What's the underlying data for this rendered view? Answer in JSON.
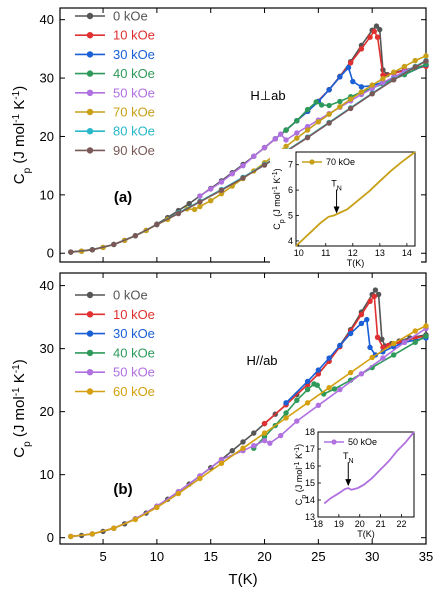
{
  "chart_data": [
    {
      "panel_label": "(b)",
      "type": "line",
      "annotation": "H//ab",
      "xlabel": "T(K)",
      "ylabel": "C_p (J mol^-1 K^-1)",
      "ylabel_parts": {
        "main": "C",
        "sub": "p",
        "u1": " (J mol",
        "e1": "-1",
        "u2": " K",
        "e2": "-1",
        "u3": ")"
      },
      "xlim": [
        1,
        35
      ],
      "ylim": [
        -1,
        42
      ],
      "xticks": [
        "5",
        "10",
        "15",
        "20",
        "25",
        "30",
        "35"
      ],
      "yticks": [
        "0",
        "10",
        "20",
        "30",
        "40"
      ],
      "xtick_values": [
        5,
        10,
        15,
        20,
        25,
        30,
        35
      ],
      "ytick_values": [
        0,
        10,
        20,
        30,
        40
      ],
      "legend_position": "top-left",
      "series": [
        {
          "name": "0 kOe",
          "color": "#555555",
          "x": [
            2,
            3,
            4,
            5,
            6,
            7,
            8,
            9,
            10,
            11,
            12,
            13,
            14,
            15,
            16,
            17,
            18,
            19,
            20,
            21,
            22,
            23,
            24,
            25,
            26,
            27,
            28,
            29,
            30,
            30.3,
            30.6,
            30.9,
            31.2,
            31.8,
            32.5,
            33.5,
            35
          ],
          "y": [
            0.2,
            0.35,
            0.6,
            1.0,
            1.5,
            2.2,
            3.0,
            3.9,
            5.0,
            6.1,
            7.3,
            8.5,
            9.8,
            11.1,
            12.4,
            13.8,
            15.2,
            16.6,
            18.1,
            19.6,
            21.1,
            22.7,
            24.3,
            26.0,
            28.0,
            30.5,
            33.0,
            35.8,
            38.6,
            39.3,
            38.6,
            31.5,
            30.4,
            30.8,
            31.2,
            31.7,
            32.2
          ]
        },
        {
          "name": "10 kOe",
          "color": "#e03030",
          "x": [
            20,
            22,
            24,
            25,
            26,
            27,
            28,
            29,
            29.8,
            30.2,
            30.5,
            31,
            31.5,
            32.5,
            34,
            35
          ],
          "y": [
            18.1,
            21.1,
            24.3,
            26.0,
            28.0,
            30.3,
            32.8,
            35.4,
            37.5,
            38.3,
            31.8,
            30.2,
            30.5,
            31.0,
            31.7,
            32.0
          ]
        },
        {
          "name": "30 kOe",
          "color": "#1a5fd6",
          "x": [
            22,
            24,
            25,
            26,
            27,
            28,
            29,
            29.5,
            29.8,
            30.3,
            31,
            32,
            33,
            35
          ],
          "y": [
            21.4,
            24.8,
            26.6,
            28.5,
            30.5,
            32.4,
            34.0,
            34.6,
            30.2,
            29.0,
            29.5,
            30.3,
            31.0,
            31.7
          ]
        },
        {
          "name": "40 kOe",
          "color": "#2e9a5a",
          "x": [
            19,
            20,
            21,
            22,
            23,
            24,
            24.6,
            24.9,
            25.5,
            26.5,
            28,
            30,
            32,
            34,
            35
          ],
          "y": [
            14.2,
            16.0,
            17.8,
            19.8,
            21.8,
            23.5,
            24.4,
            24.2,
            22.8,
            23.6,
            25.0,
            27.0,
            29.0,
            31.0,
            32.0
          ]
        },
        {
          "name": "50 kOe",
          "color": "#b070e0",
          "x": [
            2,
            4,
            6,
            8,
            10,
            12,
            14,
            16,
            18,
            19,
            20,
            20.5,
            21.5,
            23,
            25,
            27,
            29,
            31,
            33,
            35
          ],
          "y": [
            0.2,
            0.6,
            1.5,
            3.0,
            5.0,
            7.3,
            9.8,
            12.4,
            13.8,
            14.6,
            15.4,
            15.0,
            16.2,
            18.5,
            21.0,
            23.5,
            26.0,
            28.5,
            31.0,
            33.2
          ]
        },
        {
          "name": "60 kOe",
          "color": "#d4a010",
          "x": [
            2,
            4,
            6,
            8,
            10,
            12,
            14,
            16,
            18,
            20,
            22,
            24,
            26,
            28,
            30,
            32,
            34,
            35
          ],
          "y": [
            0.2,
            0.6,
            1.5,
            2.9,
            4.8,
            7.0,
            9.4,
            11.8,
            14.2,
            16.6,
            19.0,
            21.4,
            23.8,
            26.2,
            28.6,
            30.8,
            32.8,
            33.6
          ]
        }
      ],
      "inset": {
        "legend": "50 kOe",
        "color": "#b070e0",
        "xlabel": "T(K)",
        "ylabel": "C_p (J mol^-1 K^-1)",
        "ylabel_parts": {
          "main": "C",
          "sub": "p",
          "u1": " (J mol",
          "e1": "-1",
          "u2": " K",
          "e2": "-1",
          "u3": ")"
        },
        "xlim": [
          18,
          22.6
        ],
        "ylim": [
          13,
          18
        ],
        "xticks": [
          "18",
          "19",
          "20",
          "21",
          "22"
        ],
        "yticks": [
          "13",
          "14",
          "15",
          "16",
          "17",
          "18"
        ],
        "xtick_values": [
          18,
          19,
          20,
          21,
          22
        ],
        "ytick_values": [
          13,
          14,
          15,
          16,
          17,
          18
        ],
        "marker_label": "T_N",
        "marker_parts": {
          "main": "T",
          "sub": "N"
        },
        "marker_x": 19.45,
        "marker_y": 14.7,
        "x": [
          18.3,
          18.6,
          19.0,
          19.3,
          19.45,
          19.6,
          19.9,
          20.2,
          20.6,
          21.0,
          21.4,
          21.8,
          22.2,
          22.6
        ],
        "y": [
          13.8,
          14.1,
          14.4,
          14.65,
          14.7,
          14.6,
          14.7,
          14.9,
          15.3,
          15.8,
          16.3,
          16.9,
          17.4,
          18.0
        ]
      }
    },
    {
      "panel_label": "(a)",
      "type": "line",
      "annotation": "H⊥ab",
      "xlabel": "",
      "ylabel": "C_p (J mol^-1 K^-1)",
      "ylabel_parts": {
        "main": "C",
        "sub": "p",
        "u1": " (J mol",
        "e1": "-1",
        "u2": " K",
        "e2": "-1",
        "u3": ")"
      },
      "xlim": [
        1,
        35
      ],
      "ylim": [
        -1.5,
        42
      ],
      "xticks": [],
      "yticks": [
        "0",
        "10",
        "20",
        "30",
        "40"
      ],
      "xtick_values": [
        5,
        10,
        15,
        20,
        25,
        30,
        35
      ],
      "ytick_values": [
        0,
        10,
        20,
        30,
        40
      ],
      "legend_position": "top-left",
      "series": [
        {
          "name": "0 kOe",
          "color": "#555555",
          "x": [
            2,
            3,
            4,
            5,
            6,
            7,
            8,
            9,
            10,
            11,
            12,
            13,
            14,
            15,
            16,
            17,
            18,
            19,
            20,
            21,
            22,
            23,
            24,
            25,
            26,
            27,
            28,
            29,
            30,
            30.4,
            30.7,
            31.0,
            31.4,
            32,
            33,
            34,
            35
          ],
          "y": [
            0.2,
            0.35,
            0.6,
            1.0,
            1.5,
            2.2,
            3.0,
            3.9,
            5.0,
            6.1,
            7.3,
            8.5,
            9.8,
            11.1,
            12.4,
            13.8,
            15.2,
            16.6,
            18.1,
            19.6,
            21.1,
            22.7,
            24.3,
            26.0,
            28.0,
            30.3,
            32.8,
            35.6,
            38.2,
            38.9,
            38.3,
            31.4,
            30.6,
            30.9,
            31.4,
            31.8,
            32.2
          ]
        },
        {
          "name": "10 kOe",
          "color": "#e03030",
          "x": [
            20,
            22,
            24,
            26,
            27,
            28,
            29,
            29.8,
            30.2,
            30.5,
            31,
            32,
            33,
            35
          ],
          "y": [
            18.1,
            21.1,
            24.3,
            28.0,
            30.2,
            32.6,
            35.0,
            37.0,
            38.0,
            37.0,
            30.5,
            30.8,
            31.3,
            32.0
          ]
        },
        {
          "name": "30 kOe",
          "color": "#1a5fd6",
          "x": [
            21,
            22,
            23,
            24,
            25,
            26,
            27,
            27.8,
            28.2,
            29,
            30,
            31,
            32,
            33,
            35
          ],
          "y": [
            19.6,
            21.1,
            22.7,
            24.3,
            26.0,
            28.0,
            30.2,
            31.8,
            29.4,
            28.5,
            28.7,
            29.3,
            29.9,
            30.6,
            32.3
          ]
        },
        {
          "name": "40 kOe",
          "color": "#2e9a5a",
          "x": [
            19,
            20,
            21,
            22,
            23,
            24,
            24.8,
            25.3,
            26,
            27,
            28,
            29,
            30,
            31,
            32,
            33,
            35
          ],
          "y": [
            16.6,
            18.1,
            19.6,
            21.1,
            22.7,
            24.6,
            25.9,
            25.4,
            25.3,
            26.0,
            26.8,
            27.6,
            28.3,
            29.0,
            29.8,
            30.6,
            32.4
          ]
        },
        {
          "name": "50 kOe",
          "color": "#b070e0",
          "x": [
            14,
            15,
            16,
            17,
            18,
            19,
            20,
            21,
            21.5,
            22,
            23,
            24,
            25,
            26,
            27,
            28,
            29,
            30,
            31,
            32,
            33,
            35
          ],
          "y": [
            9.8,
            11.0,
            12.2,
            13.6,
            15.0,
            16.6,
            18.1,
            19.6,
            20.4,
            19.4,
            20.6,
            21.7,
            22.8,
            23.9,
            25.0,
            26.1,
            27.2,
            28.2,
            29.2,
            30.2,
            31.1,
            32.9
          ]
        },
        {
          "name": "70 kOe",
          "color": "#c8a018",
          "x": [
            2,
            3,
            4,
            5,
            6,
            7,
            8,
            9,
            10,
            11,
            12,
            12.8,
            13.5,
            14,
            15,
            16,
            17,
            18,
            19,
            20,
            21,
            22,
            23,
            24,
            25,
            26,
            27,
            28,
            29,
            30,
            31,
            32,
            33,
            34,
            35
          ],
          "y": [
            0.2,
            0.35,
            0.6,
            1.0,
            1.5,
            2.2,
            3.0,
            3.9,
            4.9,
            5.8,
            6.9,
            7.6,
            7.5,
            8.0,
            9.0,
            10.2,
            11.5,
            12.8,
            14.1,
            15.5,
            16.9,
            18.3,
            19.7,
            21.1,
            22.5,
            23.8,
            25.1,
            26.4,
            27.6,
            28.8,
            29.9,
            31.0,
            32.0,
            33.0,
            33.8
          ]
        },
        {
          "name": "80 kOe",
          "color": "#28b8c8",
          "x": [
            2,
            4,
            6,
            8,
            10,
            12,
            14,
            16,
            18,
            20,
            22,
            24,
            26,
            28,
            30,
            32,
            34,
            35
          ],
          "y": [
            0.2,
            0.6,
            1.5,
            3.0,
            4.9,
            6.9,
            8.9,
            10.9,
            13.0,
            15.2,
            17.5,
            19.9,
            22.4,
            24.9,
            27.4,
            29.8,
            32.0,
            33.0
          ]
        },
        {
          "name": "90 kOe",
          "color": "#7a5858",
          "x": [
            2,
            4,
            6,
            8,
            10,
            12,
            14,
            16,
            18,
            20,
            22,
            24,
            26,
            28,
            30,
            32,
            34,
            35
          ],
          "y": [
            0.2,
            0.6,
            1.5,
            3.0,
            4.9,
            6.8,
            8.8,
            10.8,
            12.9,
            15.1,
            17.4,
            19.8,
            22.3,
            24.8,
            27.3,
            29.7,
            31.9,
            32.9
          ]
        }
      ],
      "inset": {
        "legend": "70 kOe",
        "color": "#c8a018",
        "xlabel": "T(K)",
        "ylabel": "C_p (J mol^-1 K^-1)",
        "ylabel_parts": {
          "main": "C",
          "sub": "p",
          "u1": " (J mol",
          "e1": "-1",
          "u2": " K",
          "e2": "-1",
          "u3": ")"
        },
        "xlim": [
          9.9,
          14.3
        ],
        "ylim": [
          3.8,
          7.5
        ],
        "xticks": [
          "10",
          "11",
          "12",
          "13",
          "14"
        ],
        "yticks": [
          "4",
          "5",
          "6",
          "7"
        ],
        "xtick_values": [
          10,
          11,
          12,
          13,
          14
        ],
        "ytick_values": [
          4,
          5,
          6,
          7
        ],
        "marker_label": "T_N",
        "marker_parts": {
          "main": "T",
          "sub": "N"
        },
        "marker_x": 11.4,
        "marker_y": 5.0,
        "x": [
          9.9,
          10.2,
          10.5,
          10.8,
          11.1,
          11.3,
          11.5,
          11.8,
          12.2,
          12.6,
          13.0,
          13.4,
          13.8,
          14.3
        ],
        "y": [
          3.8,
          4.1,
          4.4,
          4.7,
          4.95,
          5.0,
          5.1,
          5.25,
          5.6,
          5.95,
          6.35,
          6.75,
          7.1,
          7.5
        ]
      }
    }
  ]
}
